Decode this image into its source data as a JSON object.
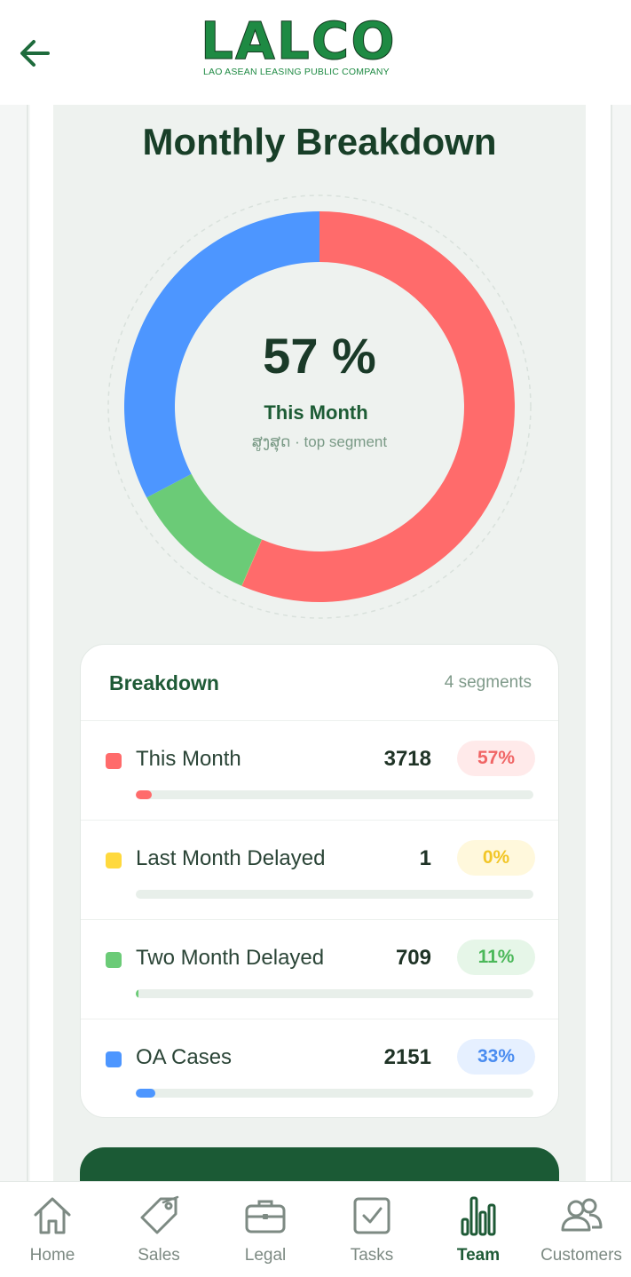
{
  "header": {
    "logo_text": "LALCO",
    "logo_subtitle": "LAO ASEAN LEASING PUBLIC COMPANY",
    "back_icon": "arrow-left-icon"
  },
  "page": {
    "title": "Monthly Breakdown"
  },
  "donut": {
    "center_percent": "57 %",
    "center_label": "This Month",
    "center_sublabel": "ສູງສຸດ · top segment"
  },
  "chart_data": {
    "type": "pie",
    "categories": [
      "This Month",
      "Last Month Delayed",
      "Two Month Delayed",
      "OA Cases"
    ],
    "values": [
      3718,
      1,
      709,
      2151
    ],
    "colors": [
      "#ff6b6b",
      "#ffd93d",
      "#6bcb77",
      "#4d96ff"
    ],
    "donut": true
  },
  "breakdown": {
    "title": "Breakdown",
    "count_label": "4 segments",
    "items": [
      {
        "label": "This Month",
        "value": "3718",
        "percent": "57%",
        "fill_fraction": 0.04,
        "color": "#ff6b6b",
        "pill_bg": "#ffeaea",
        "pill_color": "#f06565"
      },
      {
        "label": "Last Month Delayed",
        "value": "1",
        "percent": "0%",
        "fill_fraction": 0.0,
        "color": "#ffd93d",
        "pill_bg": "#fff8dc",
        "pill_color": "#f2c627"
      },
      {
        "label": "Two Month Delayed",
        "value": "709",
        "percent": "11%",
        "fill_fraction": 0.007,
        "color": "#6bcb77",
        "pill_bg": "#e6f6e8",
        "pill_color": "#4cb85a"
      },
      {
        "label": "OA Cases",
        "value": "2151",
        "percent": "33%",
        "fill_fraction": 0.05,
        "color": "#4d96ff",
        "pill_bg": "#e6f0ff",
        "pill_color": "#4a8cf0"
      }
    ]
  },
  "nav": {
    "items": [
      {
        "label": "Home",
        "icon": "home-icon",
        "active": false
      },
      {
        "label": "Sales",
        "icon": "tag-icon",
        "active": false
      },
      {
        "label": "Legal",
        "icon": "briefcase-icon",
        "active": false
      },
      {
        "label": "Tasks",
        "icon": "checkbox-icon",
        "active": false
      },
      {
        "label": "Team",
        "icon": "bar-chart-icon",
        "active": true
      },
      {
        "label": "Customers",
        "icon": "users-icon",
        "active": false
      }
    ]
  }
}
